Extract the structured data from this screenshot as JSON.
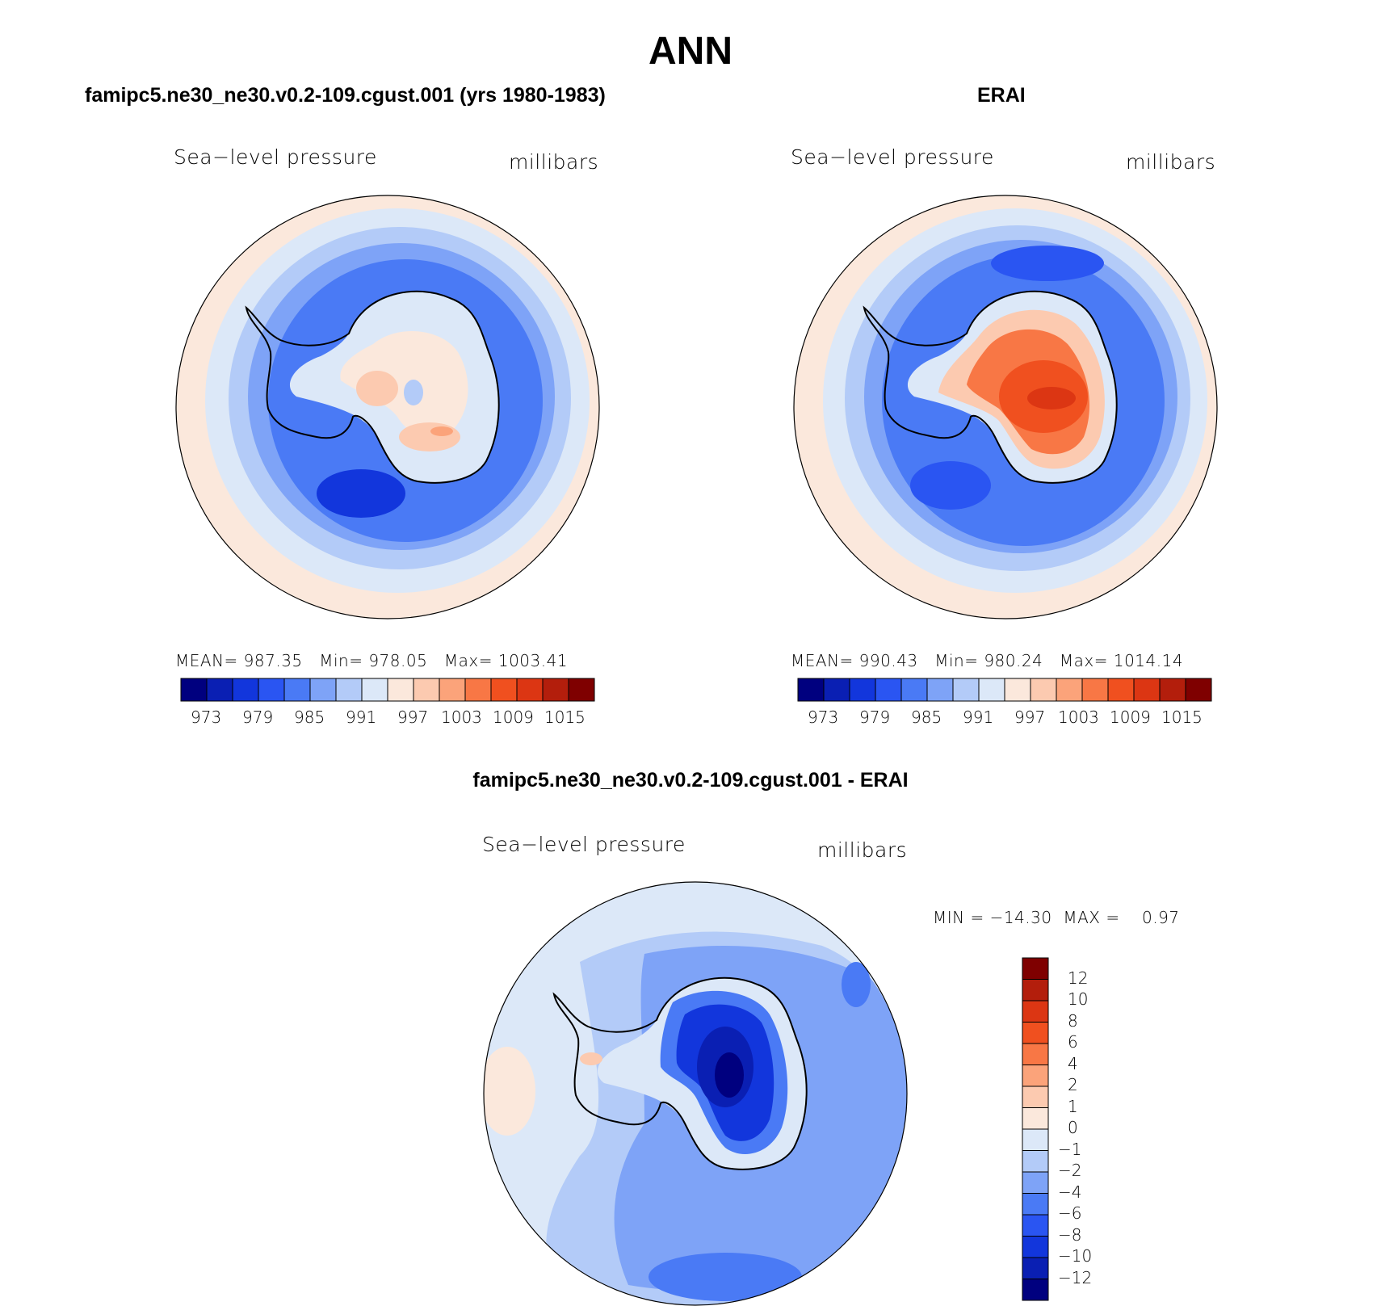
{
  "header": {
    "title": "ANN"
  },
  "panels": [
    {
      "title": "famipc5.ne30_ne30.v0.2-109.cgust.001 (yrs 1980-1983)",
      "field_label": "Sea−level pressure",
      "units": "millibars",
      "stats": {
        "mean_label": "MEAN=",
        "mean": "987.35",
        "min_label": "Min=",
        "min": "978.05",
        "max_label": "Max=",
        "max": "1003.41"
      },
      "colorbar_ticks": [
        "973",
        "979",
        "985",
        "991",
        "997",
        "1003",
        "1009",
        "1015"
      ]
    },
    {
      "title": "ERAI",
      "field_label": "Sea−level pressure",
      "units": "millibars",
      "stats": {
        "mean_label": "MEAN=",
        "mean": "990.43",
        "min_label": "Min=",
        "min": "980.24",
        "max_label": "Max=",
        "max": "1014.14"
      },
      "colorbar_ticks": [
        "973",
        "979",
        "985",
        "991",
        "997",
        "1003",
        "1009",
        "1015"
      ]
    }
  ],
  "diff_panel": {
    "title": "famipc5.ne30_ne30.v0.2-109.cgust.001 - ERAI",
    "field_label": "Sea−level pressure",
    "units": "millibars",
    "stats_text": "MIN = −14.30  MAX =    0.97",
    "colorbar_ticks": [
      "12",
      "10",
      "8",
      "6",
      "4",
      "2",
      "1",
      "0",
      "−1",
      "−2",
      "−4",
      "−6",
      "−8",
      "−10",
      "−12"
    ]
  },
  "colors": {
    "abs_scale": [
      "#00007f",
      "#0a1fb3",
      "#1236dc",
      "#2a55f2",
      "#4a7af5",
      "#7ea3f7",
      "#b3cbf8",
      "#dce8f8",
      "#fbe8dc",
      "#fccab0",
      "#fba37a",
      "#f87745",
      "#f0501f",
      "#dc3613",
      "#b31e0c",
      "#7f0000"
    ],
    "diff_scale": [
      "#7f0000",
      "#b31e0c",
      "#dc3613",
      "#f0501f",
      "#f87745",
      "#fba37a",
      "#fccab0",
      "#fbe8dc",
      "#dce8f8",
      "#b3cbf8",
      "#7ea3f7",
      "#4a7af5",
      "#2a55f2",
      "#1236dc",
      "#0a1fb3",
      "#00007f"
    ]
  }
}
